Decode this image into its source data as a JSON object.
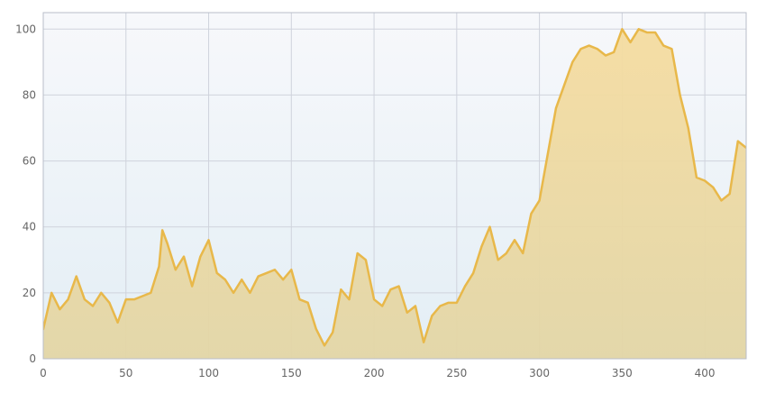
{
  "chart_data": {
    "type": "area",
    "title": "",
    "xlabel": "",
    "ylabel": "",
    "xlim": [
      0,
      425
    ],
    "ylim": [
      0,
      105
    ],
    "x_ticks": [
      0,
      50,
      100,
      150,
      200,
      250,
      300,
      350,
      400
    ],
    "y_ticks": [
      0,
      20,
      40,
      60,
      80,
      100
    ],
    "x_tick_labels": [
      "0",
      "50",
      "100",
      "150",
      "200",
      "250",
      "300",
      "350",
      "400"
    ],
    "y_tick_labels": [
      "0",
      "20",
      "40",
      "60",
      "80",
      "100"
    ],
    "grid": true,
    "legend": "none",
    "colors": {
      "line": "#e8b84a",
      "fill_top": "#f5dca0",
      "fill_bottom": "#e3d6a6",
      "plot_bg_top": "#f7f8fb",
      "plot_bg_bottom": "#e3eef5",
      "grid": "#cfd3dc",
      "frame": "#b8bec9"
    },
    "series": [
      {
        "x": [
          0,
          5,
          10,
          15,
          20,
          25,
          30,
          35,
          40,
          45,
          50,
          55,
          60,
          65,
          70,
          72,
          75,
          80,
          85,
          90,
          95,
          100,
          105,
          110,
          115,
          120,
          125,
          130,
          135,
          140,
          145,
          150,
          155,
          160,
          165,
          170,
          175,
          180,
          185,
          190,
          195,
          200,
          205,
          210,
          215,
          220,
          225,
          230,
          235,
          240,
          245,
          250,
          255,
          260,
          265,
          270,
          275,
          280,
          285,
          290,
          295,
          300,
          305,
          310,
          315,
          320,
          325,
          330,
          335,
          340,
          345,
          350,
          355,
          360,
          365,
          370,
          375,
          380,
          385,
          390,
          395,
          400,
          405,
          410,
          415,
          420,
          425
        ],
        "y": [
          9,
          20,
          15,
          18,
          25,
          18,
          16,
          20,
          17,
          11,
          18,
          18,
          19,
          20,
          28,
          39,
          35,
          27,
          31,
          22,
          31,
          36,
          26,
          24,
          20,
          24,
          20,
          25,
          26,
          27,
          24,
          27,
          18,
          17,
          9,
          4,
          8,
          21,
          18,
          32,
          30,
          18,
          16,
          21,
          22,
          14,
          16,
          5,
          13,
          16,
          17,
          17,
          22,
          26,
          34,
          40,
          30,
          32,
          36,
          32,
          44,
          48,
          62,
          76,
          83,
          90,
          94,
          95,
          94,
          92,
          93,
          100,
          96,
          100,
          99,
          99,
          95,
          94,
          80,
          70,
          55,
          54,
          52,
          48,
          50,
          66,
          64
        ]
      }
    ]
  }
}
